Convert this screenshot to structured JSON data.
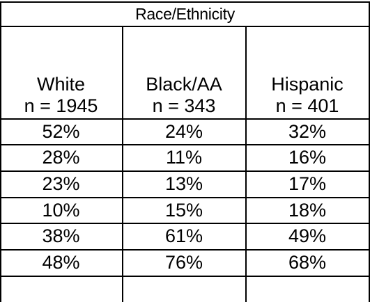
{
  "table": {
    "group_header": "Race/Ethnicity",
    "columns": [
      {
        "name": "White",
        "n": "n = 1945"
      },
      {
        "name": "Black/AA",
        "n": "n = 343"
      },
      {
        "name": "Hispanic",
        "n": "n = 401"
      }
    ],
    "rows": [
      [
        "52%",
        "24%",
        "32%"
      ],
      [
        "28%",
        "11%",
        "16%"
      ],
      [
        "23%",
        "13%",
        "17%"
      ],
      [
        "10%",
        "15%",
        "18%"
      ],
      [
        "38%",
        "61%",
        "49%"
      ],
      [
        "48%",
        "76%",
        "68%"
      ],
      [
        "",
        "",
        ""
      ]
    ]
  }
}
